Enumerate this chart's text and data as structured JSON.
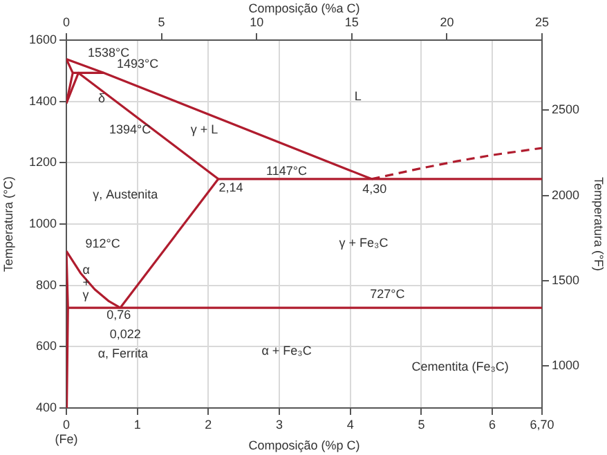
{
  "chart_data": {
    "type": "line",
    "xlabel": "Composição (%p C)",
    "x2label": "Composição (%a C)",
    "ylabel": "Temperatura (°C)",
    "y2label": "Temperatura (°F)",
    "xlim": [
      0,
      6.7
    ],
    "xticks": [
      {
        "value": 0,
        "label": "0\n(Fe)"
      },
      1,
      2,
      3,
      4,
      5,
      6,
      {
        "value": 6.7,
        "label": "6,70"
      }
    ],
    "x2lim": [
      0,
      25
    ],
    "x2ticks": [
      0,
      5,
      10,
      15,
      20,
      25
    ],
    "ylim": [
      400,
      1600
    ],
    "yticks": [
      400,
      600,
      800,
      1000,
      1200,
      1400,
      1600
    ],
    "y2lim": [
      752,
      2912
    ],
    "y2ticks": [
      1000,
      1500,
      2000,
      2500
    ],
    "grid": true,
    "legend": false,
    "marker": "none",
    "series": [
      {
        "color": "#b01c2e",
        "x": [
          0,
          0.53,
          4.3
        ],
        "values": [
          1538,
          1493,
          1147
        ]
      },
      {
        "color": "#b01c2e",
        "x": [
          0.09,
          0.53
        ],
        "values": [
          1493,
          1493
        ]
      },
      {
        "color": "#b01c2e",
        "x": [
          0,
          0.09,
          0
        ],
        "values": [
          1538,
          1493,
          1394
        ]
      },
      {
        "color": "#b01c2e",
        "x": [
          0,
          0.17,
          2.14
        ],
        "values": [
          1394,
          1493,
          1147
        ]
      },
      {
        "color": "#b01c2e",
        "x": [
          2.14,
          6.7
        ],
        "values": [
          1147,
          1147
        ]
      },
      {
        "color": "#b01c2e",
        "line_style": "dashed",
        "x": [
          4.3,
          5,
          5.5,
          6,
          6.7
        ],
        "values": [
          1147,
          1182,
          1205,
          1225,
          1248
        ]
      },
      {
        "color": "#b01c2e",
        "x": [
          2.14,
          0.76
        ],
        "values": [
          1147,
          727
        ]
      },
      {
        "color": "#b01c2e",
        "x": [
          0,
          0.2,
          0.4,
          0.6,
          0.76
        ],
        "values": [
          912,
          840,
          787,
          748,
          727
        ]
      },
      {
        "color": "#b01c2e",
        "x": [
          0.022,
          6.7
        ],
        "values": [
          727,
          727
        ]
      },
      {
        "color": "#b01c2e",
        "x": [
          0,
          0.022,
          0.005
        ],
        "values": [
          912,
          727,
          400
        ]
      }
    ],
    "annotations": [
      "1538°C",
      "1493°C",
      "δ",
      "1394°C",
      "γ + L",
      "L",
      "1147°C",
      "2,14",
      "4,30",
      "γ, Austenita",
      "γ + Fe₃C",
      "912°C",
      "α\n+\nγ",
      "727°C",
      "0,76",
      "0,022",
      "α, Ferrita",
      "α + Fe₃C",
      "Cementita (Fe₃C)"
    ]
  }
}
